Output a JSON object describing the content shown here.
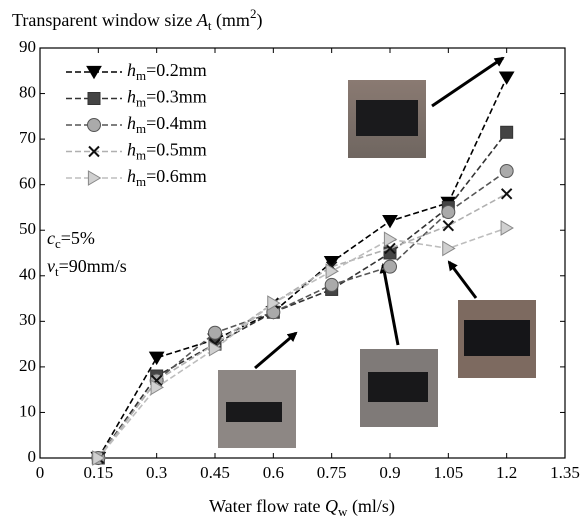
{
  "chart_data": {
    "type": "line",
    "title": "Transparent window size At (mm2)",
    "x_label": "Water flow rate Qw (ml/s)",
    "annotations": [
      "cc=5%",
      "vt=90mm/s"
    ],
    "x": [
      0.15,
      0.3,
      0.45,
      0.6,
      0.75,
      0.9,
      1.05,
      1.2
    ],
    "xlim": [
      0,
      1.35
    ],
    "xticks": [
      0,
      0.15,
      0.3,
      0.45,
      0.6,
      0.75,
      0.9,
      1.05,
      1.2,
      1.35
    ],
    "ylim": [
      0,
      90
    ],
    "yticks": [
      0,
      10,
      20,
      30,
      40,
      50,
      60,
      70,
      80,
      90
    ],
    "grid": false,
    "legend": "upper left",
    "series": [
      {
        "name": "hm=0.2mm",
        "color": "#000000",
        "marker": "triangle-down",
        "values": [
          0,
          22,
          26,
          32,
          43,
          52,
          56,
          83.5
        ]
      },
      {
        "name": "hm=0.3mm",
        "color": "#333333",
        "marker": "square",
        "values": [
          0,
          18,
          25,
          32,
          37,
          45,
          55,
          71.5
        ]
      },
      {
        "name": "hm=0.4mm",
        "color": "#555555",
        "marker": "circle",
        "values": [
          0,
          17,
          27.5,
          32,
          38,
          42,
          54,
          63
        ]
      },
      {
        "name": "hm=0.5mm",
        "color": "#b0b0b0",
        "marker": "x",
        "values": [
          0,
          17,
          25,
          34,
          42,
          46,
          51,
          58
        ]
      },
      {
        "name": "hm=0.6mm",
        "color": "#bdbdbd",
        "marker": "triangle-right",
        "values": [
          0,
          15.5,
          24,
          34,
          41,
          48,
          46,
          50.5
        ]
      }
    ]
  }
}
